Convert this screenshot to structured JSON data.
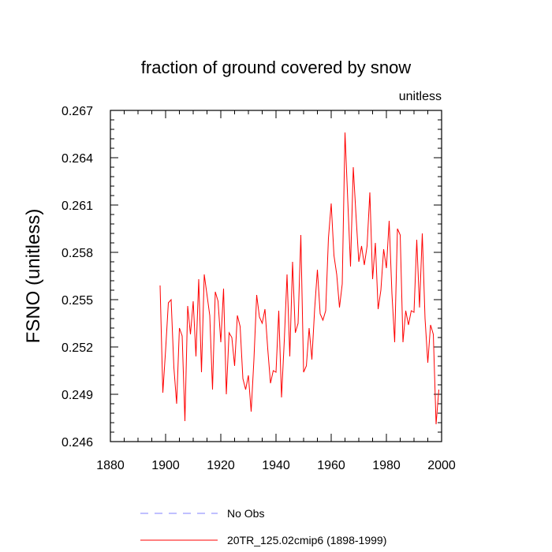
{
  "chart_data": {
    "type": "line",
    "title": "fraction of ground covered by snow",
    "units_label": "unitless",
    "ylabel": "FSNO  (unitless)",
    "xlabel": "",
    "xlim": [
      1880,
      2000
    ],
    "ylim": [
      0.246,
      0.267
    ],
    "x_ticks": [
      1880,
      1900,
      1920,
      1940,
      1960,
      1980,
      2000
    ],
    "y_ticks": [
      0.246,
      0.249,
      0.252,
      0.255,
      0.258,
      0.261,
      0.264,
      0.267
    ],
    "y_tick_labels": [
      "0.246",
      "0.249",
      "0.252",
      "0.255",
      "0.258",
      "0.261",
      "0.264",
      "0.267"
    ],
    "legend": [
      {
        "label": "No Obs",
        "color": "#8080ff",
        "style": "dashed"
      },
      {
        "label": "20TR_125.02cmip6 (1898-1999)",
        "color": "#ff0000",
        "style": "solid"
      }
    ],
    "series": [
      {
        "name": "20TR_125.02cmip6 (1898-1999)",
        "color": "#ff0000",
        "x_start": 1898,
        "values": [
          0.2559,
          0.2491,
          0.2518,
          0.2548,
          0.255,
          0.2507,
          0.2484,
          0.2532,
          0.2527,
          0.2473,
          0.2546,
          0.2528,
          0.2549,
          0.2514,
          0.2563,
          0.2504,
          0.2566,
          0.2553,
          0.254,
          0.2493,
          0.2555,
          0.2549,
          0.2523,
          0.2557,
          0.249,
          0.2529,
          0.2526,
          0.2508,
          0.254,
          0.2533,
          0.25,
          0.2493,
          0.2502,
          0.2479,
          0.2512,
          0.2553,
          0.2539,
          0.2535,
          0.2544,
          0.2519,
          0.2497,
          0.2505,
          0.2504,
          0.2543,
          0.2488,
          0.2524,
          0.2566,
          0.2514,
          0.2574,
          0.2529,
          0.2535,
          0.2591,
          0.2504,
          0.2508,
          0.2532,
          0.2512,
          0.2544,
          0.2569,
          0.2541,
          0.2537,
          0.2543,
          0.2589,
          0.2611,
          0.2578,
          0.2566,
          0.2545,
          0.256,
          0.2656,
          0.2613,
          0.2571,
          0.2634,
          0.2603,
          0.2574,
          0.2584,
          0.2572,
          0.2584,
          0.2618,
          0.2563,
          0.2586,
          0.2544,
          0.2556,
          0.2582,
          0.257,
          0.26,
          0.2554,
          0.2523,
          0.2595,
          0.2591,
          0.2523,
          0.2543,
          0.2534,
          0.2543,
          0.2542,
          0.2588,
          0.2545,
          0.2592,
          0.2538,
          0.251,
          0.2534,
          0.2528,
          0.2471,
          0.2493
        ]
      }
    ]
  }
}
